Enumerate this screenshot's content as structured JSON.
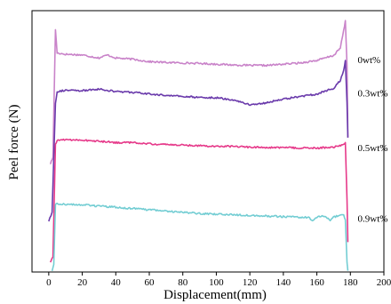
{
  "chart_data": {
    "type": "line",
    "xlabel": "Displacement(mm)",
    "ylabel": "Peel force (N)",
    "xlim": [
      -10,
      200
    ],
    "xticks": [
      0,
      20,
      40,
      60,
      80,
      100,
      120,
      140,
      160,
      180,
      200
    ],
    "y_tick_labels": false,
    "grid": false,
    "legend": "inline labels at right end of each curve",
    "series": [
      {
        "name": "0wt%",
        "color": "#c983c9",
        "points": [
          [
            1,
            4.35
          ],
          [
            2.5,
            4.6
          ],
          [
            4,
            9.75
          ],
          [
            5,
            8.8
          ],
          [
            10,
            8.75
          ],
          [
            20,
            8.72
          ],
          [
            30,
            8.6
          ],
          [
            35,
            8.72
          ],
          [
            40,
            8.6
          ],
          [
            50,
            8.55
          ],
          [
            60,
            8.45
          ],
          [
            70,
            8.42
          ],
          [
            80,
            8.4
          ],
          [
            90,
            8.38
          ],
          [
            100,
            8.35
          ],
          [
            110,
            8.32
          ],
          [
            120,
            8.3
          ],
          [
            130,
            8.3
          ],
          [
            140,
            8.35
          ],
          [
            150,
            8.4
          ],
          [
            160,
            8.5
          ],
          [
            170,
            8.7
          ],
          [
            174,
            9.0
          ],
          [
            176,
            9.7
          ],
          [
            177,
            10.1
          ],
          [
            178,
            8.3
          ],
          [
            178.5,
            5.4
          ]
        ]
      },
      {
        "name": "0.3wt%",
        "color": "#6a3aab",
        "points": [
          [
            0,
            2.05
          ],
          [
            2,
            2.4
          ],
          [
            4,
            6.8
          ],
          [
            5,
            7.25
          ],
          [
            10,
            7.3
          ],
          [
            20,
            7.28
          ],
          [
            30,
            7.35
          ],
          [
            40,
            7.25
          ],
          [
            50,
            7.22
          ],
          [
            60,
            7.15
          ],
          [
            70,
            7.1
          ],
          [
            80,
            7.05
          ],
          [
            90,
            7.02
          ],
          [
            100,
            7.0
          ],
          [
            110,
            6.92
          ],
          [
            120,
            6.72
          ],
          [
            130,
            6.8
          ],
          [
            140,
            6.95
          ],
          [
            150,
            7.05
          ],
          [
            160,
            7.15
          ],
          [
            170,
            7.38
          ],
          [
            174,
            7.7
          ],
          [
            176,
            8.1
          ],
          [
            177,
            8.5
          ],
          [
            178,
            6.8
          ],
          [
            178.5,
            5.4
          ]
        ]
      },
      {
        "name": "0.5wt%",
        "color": "#e63a8a",
        "points": [
          [
            1,
            0.4
          ],
          [
            2.5,
            0.6
          ],
          [
            4,
            5.1
          ],
          [
            5,
            5.3
          ],
          [
            10,
            5.32
          ],
          [
            20,
            5.3
          ],
          [
            30,
            5.25
          ],
          [
            40,
            5.2
          ],
          [
            50,
            5.2
          ],
          [
            60,
            5.15
          ],
          [
            70,
            5.12
          ],
          [
            80,
            5.1
          ],
          [
            90,
            5.08
          ],
          [
            100,
            5.05
          ],
          [
            110,
            5.05
          ],
          [
            120,
            5.02
          ],
          [
            130,
            5.0
          ],
          [
            140,
            5.0
          ],
          [
            150,
            4.98
          ],
          [
            160,
            4.98
          ],
          [
            170,
            5.02
          ],
          [
            176,
            5.1
          ],
          [
            177,
            5.2
          ],
          [
            178,
            2.9
          ],
          [
            178.5,
            1.2
          ]
        ]
      },
      {
        "name": "0.9wt%",
        "color": "#73cdd3",
        "points": [
          [
            2,
            0.05
          ],
          [
            3,
            0.3
          ],
          [
            4,
            2.7
          ],
          [
            5,
            2.75
          ],
          [
            10,
            2.72
          ],
          [
            20,
            2.7
          ],
          [
            30,
            2.65
          ],
          [
            40,
            2.6
          ],
          [
            50,
            2.55
          ],
          [
            60,
            2.5
          ],
          [
            70,
            2.45
          ],
          [
            80,
            2.4
          ],
          [
            90,
            2.35
          ],
          [
            100,
            2.32
          ],
          [
            110,
            2.3
          ],
          [
            120,
            2.28
          ],
          [
            130,
            2.25
          ],
          [
            140,
            2.22
          ],
          [
            150,
            2.2
          ],
          [
            155,
            2.2
          ],
          [
            158,
            2.05
          ],
          [
            160,
            2.2
          ],
          [
            165,
            2.25
          ],
          [
            168,
            2.05
          ],
          [
            170,
            2.2
          ],
          [
            174,
            2.28
          ],
          [
            176,
            2.3
          ],
          [
            177,
            2.1
          ],
          [
            178,
            0.4
          ],
          [
            178.5,
            0.05
          ]
        ]
      }
    ]
  }
}
